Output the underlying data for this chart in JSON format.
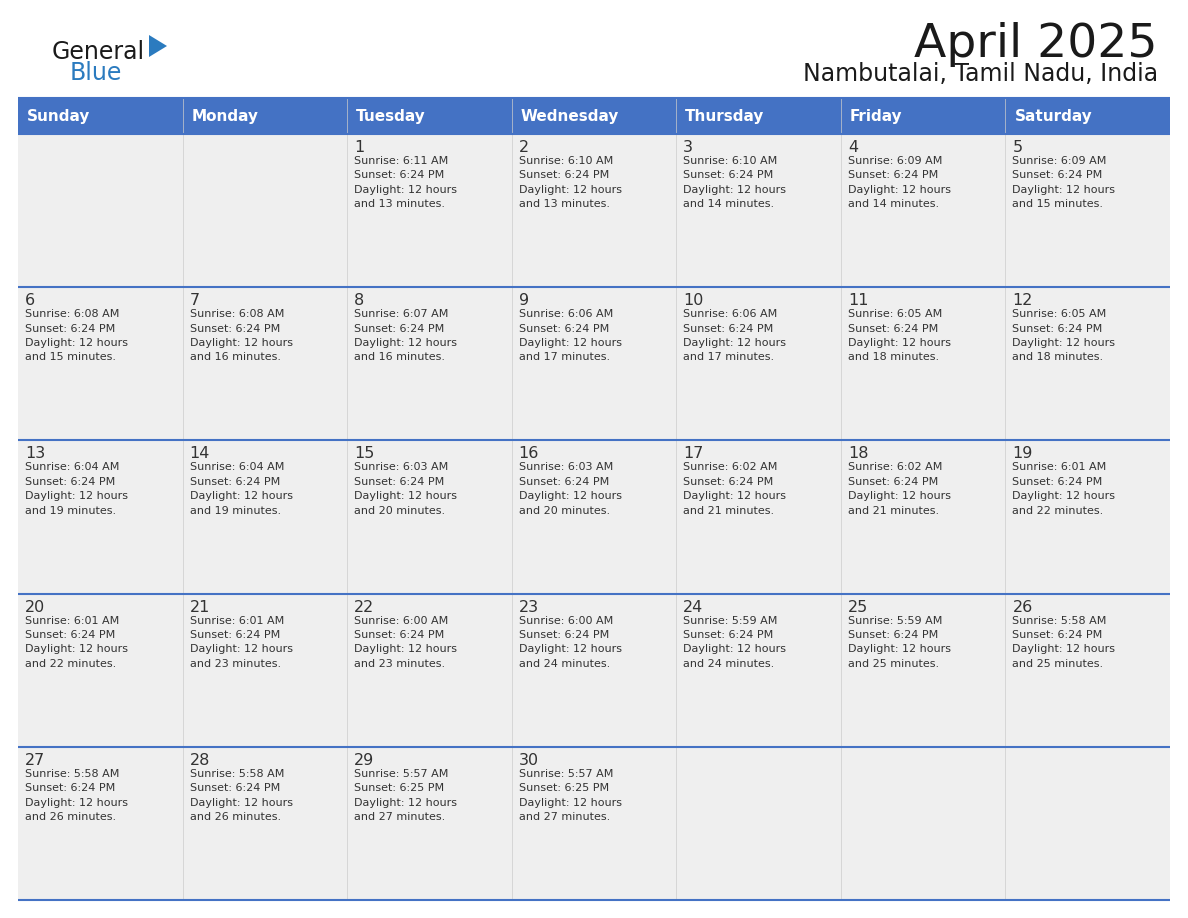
{
  "title": "April 2025",
  "subtitle": "Nambutalai, Tamil Nadu, India",
  "header_bg": "#4472C4",
  "header_text_color": "#FFFFFF",
  "cell_bg_light": "#EFEFEF",
  "cell_bg_white": "#FFFFFF",
  "cell_text_color": "#333333",
  "day_number_color": "#333333",
  "line_color": "#4472C4",
  "separator_color": "#4472C4",
  "days_of_week": [
    "Sunday",
    "Monday",
    "Tuesday",
    "Wednesday",
    "Thursday",
    "Friday",
    "Saturday"
  ],
  "logo_general_color": "#1a1a1a",
  "logo_blue_color": "#2B7BBF",
  "logo_triangle_color": "#2B7BBF",
  "weeks": [
    [
      {
        "day": "",
        "info": ""
      },
      {
        "day": "",
        "info": ""
      },
      {
        "day": "1",
        "info": "Sunrise: 6:11 AM\nSunset: 6:24 PM\nDaylight: 12 hours\nand 13 minutes."
      },
      {
        "day": "2",
        "info": "Sunrise: 6:10 AM\nSunset: 6:24 PM\nDaylight: 12 hours\nand 13 minutes."
      },
      {
        "day": "3",
        "info": "Sunrise: 6:10 AM\nSunset: 6:24 PM\nDaylight: 12 hours\nand 14 minutes."
      },
      {
        "day": "4",
        "info": "Sunrise: 6:09 AM\nSunset: 6:24 PM\nDaylight: 12 hours\nand 14 minutes."
      },
      {
        "day": "5",
        "info": "Sunrise: 6:09 AM\nSunset: 6:24 PM\nDaylight: 12 hours\nand 15 minutes."
      }
    ],
    [
      {
        "day": "6",
        "info": "Sunrise: 6:08 AM\nSunset: 6:24 PM\nDaylight: 12 hours\nand 15 minutes."
      },
      {
        "day": "7",
        "info": "Sunrise: 6:08 AM\nSunset: 6:24 PM\nDaylight: 12 hours\nand 16 minutes."
      },
      {
        "day": "8",
        "info": "Sunrise: 6:07 AM\nSunset: 6:24 PM\nDaylight: 12 hours\nand 16 minutes."
      },
      {
        "day": "9",
        "info": "Sunrise: 6:06 AM\nSunset: 6:24 PM\nDaylight: 12 hours\nand 17 minutes."
      },
      {
        "day": "10",
        "info": "Sunrise: 6:06 AM\nSunset: 6:24 PM\nDaylight: 12 hours\nand 17 minutes."
      },
      {
        "day": "11",
        "info": "Sunrise: 6:05 AM\nSunset: 6:24 PM\nDaylight: 12 hours\nand 18 minutes."
      },
      {
        "day": "12",
        "info": "Sunrise: 6:05 AM\nSunset: 6:24 PM\nDaylight: 12 hours\nand 18 minutes."
      }
    ],
    [
      {
        "day": "13",
        "info": "Sunrise: 6:04 AM\nSunset: 6:24 PM\nDaylight: 12 hours\nand 19 minutes."
      },
      {
        "day": "14",
        "info": "Sunrise: 6:04 AM\nSunset: 6:24 PM\nDaylight: 12 hours\nand 19 minutes."
      },
      {
        "day": "15",
        "info": "Sunrise: 6:03 AM\nSunset: 6:24 PM\nDaylight: 12 hours\nand 20 minutes."
      },
      {
        "day": "16",
        "info": "Sunrise: 6:03 AM\nSunset: 6:24 PM\nDaylight: 12 hours\nand 20 minutes."
      },
      {
        "day": "17",
        "info": "Sunrise: 6:02 AM\nSunset: 6:24 PM\nDaylight: 12 hours\nand 21 minutes."
      },
      {
        "day": "18",
        "info": "Sunrise: 6:02 AM\nSunset: 6:24 PM\nDaylight: 12 hours\nand 21 minutes."
      },
      {
        "day": "19",
        "info": "Sunrise: 6:01 AM\nSunset: 6:24 PM\nDaylight: 12 hours\nand 22 minutes."
      }
    ],
    [
      {
        "day": "20",
        "info": "Sunrise: 6:01 AM\nSunset: 6:24 PM\nDaylight: 12 hours\nand 22 minutes."
      },
      {
        "day": "21",
        "info": "Sunrise: 6:01 AM\nSunset: 6:24 PM\nDaylight: 12 hours\nand 23 minutes."
      },
      {
        "day": "22",
        "info": "Sunrise: 6:00 AM\nSunset: 6:24 PM\nDaylight: 12 hours\nand 23 minutes."
      },
      {
        "day": "23",
        "info": "Sunrise: 6:00 AM\nSunset: 6:24 PM\nDaylight: 12 hours\nand 24 minutes."
      },
      {
        "day": "24",
        "info": "Sunrise: 5:59 AM\nSunset: 6:24 PM\nDaylight: 12 hours\nand 24 minutes."
      },
      {
        "day": "25",
        "info": "Sunrise: 5:59 AM\nSunset: 6:24 PM\nDaylight: 12 hours\nand 25 minutes."
      },
      {
        "day": "26",
        "info": "Sunrise: 5:58 AM\nSunset: 6:24 PM\nDaylight: 12 hours\nand 25 minutes."
      }
    ],
    [
      {
        "day": "27",
        "info": "Sunrise: 5:58 AM\nSunset: 6:24 PM\nDaylight: 12 hours\nand 26 minutes."
      },
      {
        "day": "28",
        "info": "Sunrise: 5:58 AM\nSunset: 6:24 PM\nDaylight: 12 hours\nand 26 minutes."
      },
      {
        "day": "29",
        "info": "Sunrise: 5:57 AM\nSunset: 6:25 PM\nDaylight: 12 hours\nand 27 minutes."
      },
      {
        "day": "30",
        "info": "Sunrise: 5:57 AM\nSunset: 6:25 PM\nDaylight: 12 hours\nand 27 minutes."
      },
      {
        "day": "",
        "info": ""
      },
      {
        "day": "",
        "info": ""
      },
      {
        "day": "",
        "info": ""
      }
    ]
  ]
}
